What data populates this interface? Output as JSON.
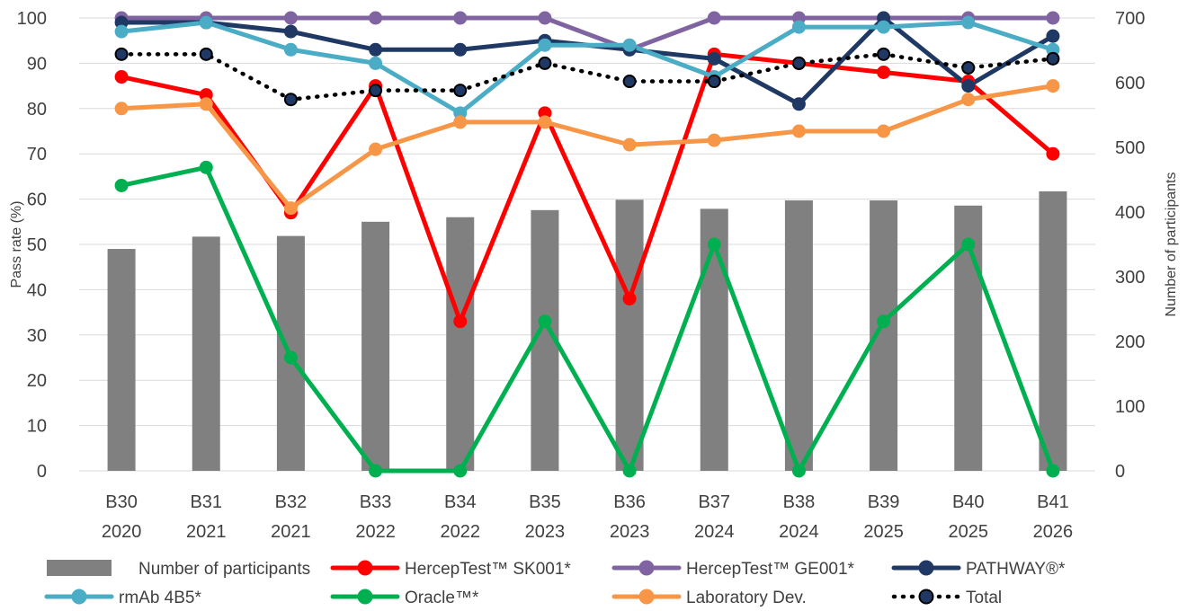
{
  "chart_data": {
    "type": "bar+line",
    "categories": [
      [
        "B30",
        "2020"
      ],
      [
        "B31",
        "2021"
      ],
      [
        "B32",
        "2021"
      ],
      [
        "B33",
        "2022"
      ],
      [
        "B34",
        "2022"
      ],
      [
        "B35",
        "2023"
      ],
      [
        "B36",
        "2023"
      ],
      [
        "B37",
        "2024"
      ],
      [
        "B38",
        "2024"
      ],
      [
        "B39",
        "2025"
      ],
      [
        "B40",
        "2025"
      ],
      [
        "B41",
        "2026"
      ]
    ],
    "ylabel": "Pass rate (%)",
    "y2label": "Number of participants",
    "ylim": [
      0,
      100
    ],
    "y2lim": [
      0,
      700
    ],
    "yticks": [
      0,
      10,
      20,
      30,
      40,
      50,
      60,
      70,
      80,
      90,
      100
    ],
    "y2ticks": [
      0,
      100,
      200,
      300,
      400,
      500,
      600,
      700
    ],
    "grid": true,
    "legend_position": "bottom",
    "bars": {
      "name": "Number of participants",
      "color": "#808080",
      "axis": "right",
      "values": [
        343,
        362,
        363,
        385,
        392,
        403,
        419,
        405,
        418,
        418,
        410,
        432
      ]
    },
    "series": [
      {
        "name": "HercepTest™ SK001*",
        "color": "#ff0000",
        "style": "solid",
        "marker_fill": "#ff0000",
        "values": [
          87,
          83,
          57,
          85,
          33,
          79,
          38,
          92,
          90,
          88,
          86,
          70
        ]
      },
      {
        "name": "HercepTest™ GE001*",
        "color": "#8064a2",
        "style": "solid",
        "marker_fill": "#8064a2",
        "values": [
          100,
          100,
          100,
          100,
          100,
          100,
          93,
          100,
          100,
          100,
          100,
          100
        ]
      },
      {
        "name": "PATHWAY®*",
        "color": "#1f3864",
        "style": "solid",
        "marker_fill": "#1f3864",
        "values": [
          99,
          99,
          97,
          93,
          93,
          95,
          93,
          91,
          81,
          100,
          85,
          96
        ]
      },
      {
        "name": "rmAb 4B5*",
        "color": "#4bacc6",
        "style": "solid",
        "marker_fill": "#4bacc6",
        "values": [
          97,
          99,
          93,
          90,
          79,
          94,
          94,
          87,
          98,
          98,
          99,
          93
        ]
      },
      {
        "name": "Oracle™*",
        "color": "#00b050",
        "style": "solid",
        "marker_fill": "#00b050",
        "values": [
          63,
          67,
          25,
          0,
          0,
          33,
          0,
          50,
          0,
          33,
          50,
          0
        ]
      },
      {
        "name": "Laboratory Dev.",
        "color": "#f79646",
        "style": "solid",
        "marker_fill": "#f79646",
        "values": [
          80,
          81,
          58,
          71,
          77,
          77,
          72,
          73,
          75,
          75,
          82,
          85
        ]
      },
      {
        "name": "Total",
        "color": "#000000",
        "style": "dotted",
        "marker_fill": "#1f3864",
        "values": [
          92,
          92,
          82,
          84,
          84,
          90,
          86,
          86,
          90,
          92,
          89,
          91
        ]
      }
    ]
  }
}
